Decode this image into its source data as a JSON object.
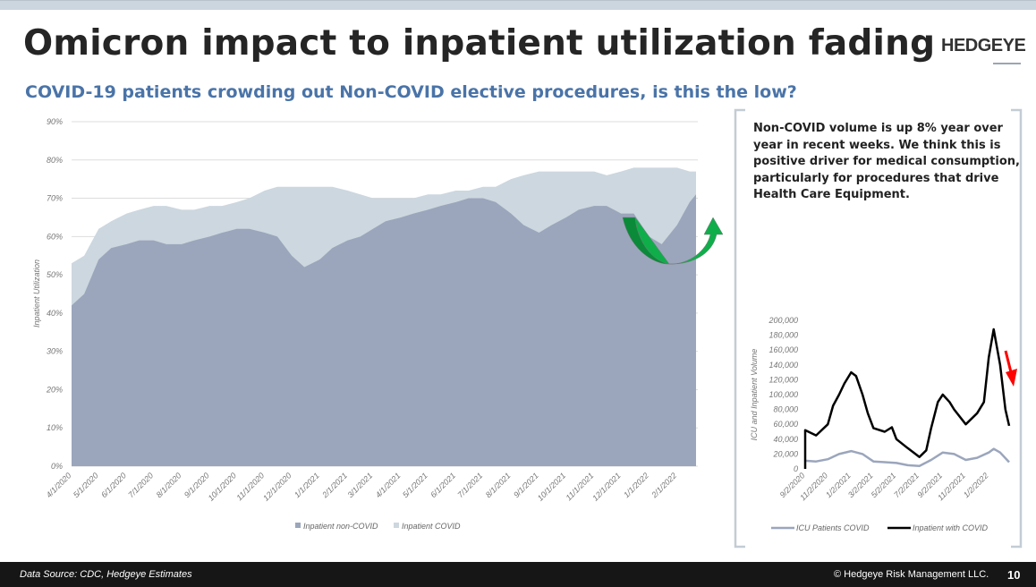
{
  "header": {
    "title": "Omicron impact to inpatient utilization fading",
    "logo": "HEDGEYE",
    "subtitle": "COVID-19 patients crowding out Non-COVID elective procedures, is this the low?"
  },
  "note": "Non-COVID volume is up 8% year over year in recent weeks.  We think this is positive driver for medical consumption, particularly for procedures that drive Health Care Equipment.",
  "footer": {
    "source": "Data Source: CDC, Hedgeye Estimates",
    "copyright": "© Hedgeye Risk Management LLC.",
    "page": "10"
  },
  "chart_data": [
    {
      "type": "area",
      "stacked": true,
      "ylabel": "Inpatient Utilization",
      "ylim": [
        0,
        0.9
      ],
      "yticks": [
        "0%",
        "10%",
        "20%",
        "30%",
        "40%",
        "50%",
        "60%",
        "70%",
        "80%",
        "90%"
      ],
      "xticks": [
        "4/1/2020",
        "5/1/2020",
        "6/1/2020",
        "7/1/2020",
        "8/1/2020",
        "9/1/2020",
        "10/1/2020",
        "11/1/2020",
        "12/1/2020",
        "1/1/2021",
        "2/1/2021",
        "3/1/2021",
        "4/1/2021",
        "5/1/2021",
        "6/1/2021",
        "7/1/2021",
        "8/1/2021",
        "9/1/2021",
        "10/1/2021",
        "11/1/2021",
        "12/1/2021",
        "1/1/2022",
        "2/1/2022"
      ],
      "grid": true,
      "legend": "bottom",
      "colors": {
        "Inpatient non-COVID": "#9ba6bc",
        "Inpatient COVID": "#ccd7df"
      },
      "x": [
        "2020-04-01",
        "2020-04-15",
        "2020-05-01",
        "2020-05-15",
        "2020-06-01",
        "2020-06-15",
        "2020-07-01",
        "2020-07-15",
        "2020-08-01",
        "2020-08-15",
        "2020-09-01",
        "2020-09-15",
        "2020-10-01",
        "2020-10-15",
        "2020-11-01",
        "2020-11-15",
        "2020-12-01",
        "2020-12-15",
        "2021-01-01",
        "2021-01-15",
        "2021-02-01",
        "2021-02-15",
        "2021-03-01",
        "2021-03-15",
        "2021-04-01",
        "2021-04-15",
        "2021-05-01",
        "2021-05-15",
        "2021-06-01",
        "2021-06-15",
        "2021-07-01",
        "2021-07-15",
        "2021-08-01",
        "2021-08-15",
        "2021-09-01",
        "2021-09-15",
        "2021-10-01",
        "2021-10-15",
        "2021-11-01",
        "2021-11-15",
        "2021-12-01",
        "2021-12-15",
        "2022-01-01",
        "2022-01-15",
        "2022-02-01",
        "2022-02-15",
        "2022-02-22"
      ],
      "series": [
        {
          "name": "Inpatient non-COVID",
          "values": [
            0.42,
            0.45,
            0.54,
            0.57,
            0.58,
            0.59,
            0.59,
            0.58,
            0.58,
            0.59,
            0.6,
            0.61,
            0.62,
            0.62,
            0.61,
            0.6,
            0.55,
            0.52,
            0.54,
            0.57,
            0.59,
            0.6,
            0.62,
            0.64,
            0.65,
            0.66,
            0.67,
            0.68,
            0.69,
            0.7,
            0.7,
            0.69,
            0.66,
            0.63,
            0.61,
            0.63,
            0.65,
            0.67,
            0.68,
            0.68,
            0.66,
            0.66,
            0.6,
            0.58,
            0.63,
            0.69,
            0.71
          ]
        },
        {
          "name": "Inpatient COVID",
          "values": [
            0.11,
            0.1,
            0.08,
            0.07,
            0.08,
            0.08,
            0.09,
            0.1,
            0.09,
            0.08,
            0.08,
            0.07,
            0.07,
            0.08,
            0.11,
            0.13,
            0.18,
            0.21,
            0.19,
            0.16,
            0.13,
            0.11,
            0.08,
            0.06,
            0.05,
            0.04,
            0.04,
            0.03,
            0.03,
            0.02,
            0.03,
            0.04,
            0.09,
            0.13,
            0.16,
            0.14,
            0.12,
            0.1,
            0.09,
            0.08,
            0.11,
            0.12,
            0.18,
            0.2,
            0.15,
            0.08,
            0.06
          ]
        }
      ]
    },
    {
      "type": "line",
      "ylabel": "ICU and Inpatient Volume",
      "ylim": [
        0,
        200000
      ],
      "yticks": [
        "0",
        "20,000",
        "40,000",
        "60,000",
        "80,000",
        "100,000",
        "120,000",
        "140,000",
        "160,000",
        "180,000",
        "200,000"
      ],
      "xticks": [
        "9/2/2020",
        "11/2/2020",
        "1/2/2021",
        "3/2/2021",
        "5/2/2021",
        "7/2/2021",
        "9/2/2021",
        "11/2/2021",
        "1/2/2022"
      ],
      "legend": "bottom",
      "series": [
        {
          "name": "ICU Patients COVID",
          "color": "#9ba6bc",
          "x": [
            "2020-09-02",
            "2020-10-01",
            "2020-11-01",
            "2020-12-01",
            "2021-01-02",
            "2021-02-01",
            "2021-03-02",
            "2021-04-01",
            "2021-05-02",
            "2021-06-01",
            "2021-07-02",
            "2021-08-02",
            "2021-09-02",
            "2021-10-02",
            "2021-11-02",
            "2021-12-02",
            "2022-01-02",
            "2022-01-15",
            "2022-02-01",
            "2022-02-25"
          ],
          "values": [
            11000,
            10000,
            13000,
            20000,
            24000,
            20000,
            10000,
            9000,
            8000,
            5000,
            4000,
            12000,
            22000,
            20000,
            12000,
            15000,
            22000,
            27000,
            22000,
            9000
          ]
        },
        {
          "name": "Inpatient with COVID",
          "color": "#000000",
          "x": [
            "2020-09-02",
            "2020-10-01",
            "2020-11-01",
            "2020-11-15",
            "2020-12-01",
            "2020-12-15",
            "2021-01-02",
            "2021-01-15",
            "2021-02-01",
            "2021-02-15",
            "2021-03-02",
            "2021-04-01",
            "2021-04-20",
            "2021-05-02",
            "2021-06-01",
            "2021-07-02",
            "2021-07-20",
            "2021-08-02",
            "2021-08-20",
            "2021-09-02",
            "2021-09-20",
            "2021-10-02",
            "2021-11-02",
            "2021-12-02",
            "2021-12-20",
            "2022-01-02",
            "2022-01-15",
            "2022-02-01",
            "2022-02-15",
            "2022-02-25"
          ],
          "values": [
            52000,
            45000,
            60000,
            85000,
            100000,
            115000,
            130000,
            125000,
            100000,
            75000,
            55000,
            50000,
            56000,
            40000,
            28000,
            16000,
            25000,
            55000,
            90000,
            100000,
            90000,
            80000,
            60000,
            75000,
            90000,
            150000,
            188000,
            140000,
            80000,
            58000
          ]
        }
      ]
    }
  ]
}
